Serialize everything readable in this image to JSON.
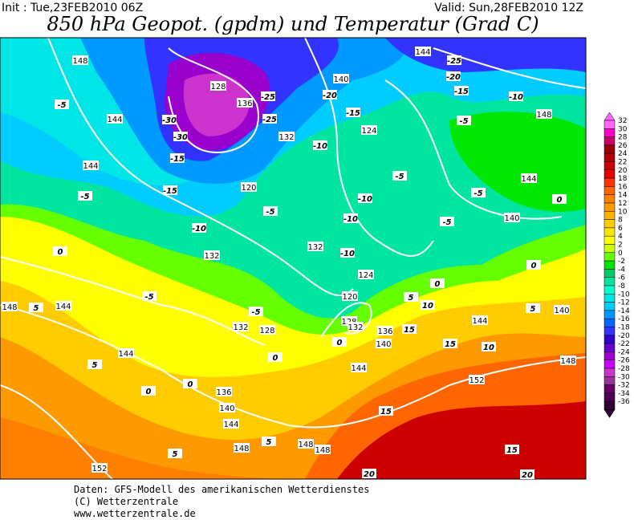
{
  "header": {
    "init": "Init : Tue,23FEB2010 06Z",
    "valid": "Valid: Sun,28FEB2010 12Z",
    "title": "850 hPa Geopot. (gpdm) und Temperatur (Grad C)"
  },
  "map": {
    "geopotential_labels": [
      148,
      144,
      140,
      136,
      132,
      128,
      124,
      120,
      144,
      144,
      144,
      140,
      148,
      132,
      132,
      124,
      120,
      128,
      132,
      136,
      140,
      144,
      148,
      144,
      144,
      132,
      128,
      136,
      140,
      144,
      148,
      148,
      148,
      152,
      152,
      148,
      144,
      140
    ],
    "temperature_labels": [
      -25,
      -20,
      -15,
      -10,
      -5,
      -30,
      -30,
      -25,
      -25,
      -20,
      -15,
      -10,
      -5,
      -15,
      -15,
      -5,
      -10,
      -5,
      -10,
      -10,
      -5,
      -5,
      -5,
      -10,
      -5,
      -5,
      0,
      5,
      5,
      0,
      0,
      0,
      5,
      5,
      0,
      5,
      10,
      15,
      15,
      10,
      5,
      0,
      0,
      15,
      15,
      20,
      20,
      0
    ]
  },
  "legend": {
    "levels": [
      32,
      30,
      28,
      26,
      24,
      22,
      20,
      18,
      16,
      14,
      12,
      10,
      8,
      6,
      4,
      2,
      0,
      -2,
      -4,
      -6,
      -8,
      -10,
      -12,
      -14,
      -16,
      -18,
      -20,
      -22,
      -24,
      -26,
      -28,
      -30,
      -32,
      -34,
      -36
    ],
    "colors": [
      "#ff66ff",
      "#ff00cc",
      "#cc0066",
      "#990000",
      "#b30000",
      "#cc0000",
      "#e60000",
      "#ff3300",
      "#ff6600",
      "#ff8000",
      "#ff9900",
      "#ffb300",
      "#ffcc00",
      "#ffe600",
      "#ffff00",
      "#ccff00",
      "#66ff00",
      "#00e600",
      "#00cc66",
      "#00e6a0",
      "#00ffcc",
      "#00e6e6",
      "#00ccff",
      "#0099ff",
      "#0066ff",
      "#3333ff",
      "#3300cc",
      "#6600cc",
      "#9900cc",
      "#cc00ff",
      "#cc33cc",
      "#993399",
      "#660066",
      "#4d004d",
      "#330033"
    ]
  },
  "footer": {
    "lines": [
      "Daten: GFS-Modell des amerikanischen Wetterdienstes",
      "(C) Wetterzentrale",
      "www.wetterzentrale.de"
    ]
  }
}
